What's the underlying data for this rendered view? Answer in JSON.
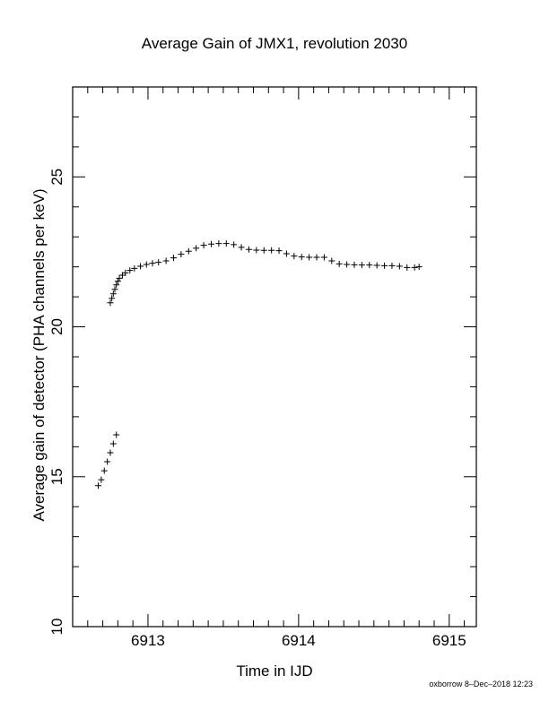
{
  "chart_data": {
    "type": "scatter",
    "title": "Average Gain of JMX1, revolution 2030",
    "xlabel": "Time in IJD",
    "ylabel": "Average gain of detector (PHA channels per keV)",
    "xlim": [
      6912.5,
      6915.18
    ],
    "ylim": [
      10,
      28
    ],
    "xticks": [
      6913,
      6914,
      6915
    ],
    "yticks": [
      10,
      15,
      20,
      25
    ],
    "grid": false,
    "marker": "+",
    "series": [
      {
        "points": [
          [
            6912.67,
            14.7
          ],
          [
            6912.69,
            14.9
          ],
          [
            6912.71,
            15.2
          ],
          [
            6912.73,
            15.5
          ],
          [
            6912.75,
            15.8
          ],
          [
            6912.77,
            16.1
          ],
          [
            6912.79,
            16.4
          ],
          [
            6912.75,
            20.8
          ],
          [
            6912.76,
            20.95
          ],
          [
            6912.77,
            21.1
          ],
          [
            6912.78,
            21.25
          ],
          [
            6912.79,
            21.4
          ],
          [
            6912.8,
            21.52
          ],
          [
            6912.81,
            21.62
          ],
          [
            6912.83,
            21.72
          ],
          [
            6912.85,
            21.8
          ],
          [
            6912.88,
            21.88
          ],
          [
            6912.91,
            21.95
          ],
          [
            6912.95,
            22.02
          ],
          [
            6912.99,
            22.08
          ],
          [
            6913.03,
            22.12
          ],
          [
            6913.07,
            22.15
          ],
          [
            6913.12,
            22.2
          ],
          [
            6913.17,
            22.3
          ],
          [
            6913.22,
            22.42
          ],
          [
            6913.27,
            22.52
          ],
          [
            6913.32,
            22.62
          ],
          [
            6913.37,
            22.72
          ],
          [
            6913.42,
            22.76
          ],
          [
            6913.47,
            22.78
          ],
          [
            6913.52,
            22.78
          ],
          [
            6913.57,
            22.74
          ],
          [
            6913.62,
            22.65
          ],
          [
            6913.67,
            22.58
          ],
          [
            6913.72,
            22.56
          ],
          [
            6913.77,
            22.55
          ],
          [
            6913.82,
            22.55
          ],
          [
            6913.87,
            22.54
          ],
          [
            6913.92,
            22.44
          ],
          [
            6913.97,
            22.36
          ],
          [
            6914.02,
            22.33
          ],
          [
            6914.07,
            22.32
          ],
          [
            6914.12,
            22.32
          ],
          [
            6914.17,
            22.32
          ],
          [
            6914.22,
            22.2
          ],
          [
            6914.27,
            22.1
          ],
          [
            6914.32,
            22.08
          ],
          [
            6914.37,
            22.07
          ],
          [
            6914.42,
            22.06
          ],
          [
            6914.47,
            22.06
          ],
          [
            6914.52,
            22.05
          ],
          [
            6914.57,
            22.04
          ],
          [
            6914.62,
            22.04
          ],
          [
            6914.67,
            22.02
          ],
          [
            6914.72,
            21.98
          ],
          [
            6914.77,
            21.98
          ],
          [
            6914.8,
            22.0
          ]
        ]
      }
    ]
  },
  "footer": "oxborrow  8–Dec–2018 12:23"
}
